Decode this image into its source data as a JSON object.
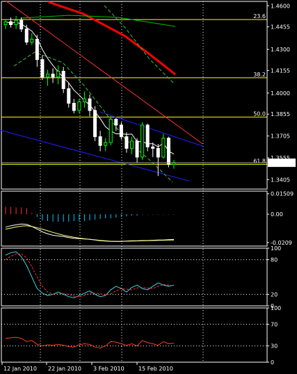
{
  "chart_data": [
    {
      "panel": "price",
      "type": "candlestick",
      "y_ticks": [
        "1.4600",
        "1.4455",
        "1.4300",
        "1.4155",
        "1.4000",
        "1.3855",
        "1.3705",
        "1.3555",
        "1.3405"
      ],
      "ylim": [
        1.334,
        1.463
      ],
      "current_price": "1.3521",
      "x_ticks": [
        "12 Jan 2010",
        "22 Jan 2010",
        "3 Feb 2010",
        "15 Feb 2010"
      ],
      "fib_levels": [
        {
          "label": "23.6",
          "price": 1.4505
        },
        {
          "label": "38.2",
          "price": 1.4105
        },
        {
          "label": "50.0",
          "price": 1.3835
        },
        {
          "label": "61.8",
          "price": 1.351
        }
      ],
      "candles": [
        {
          "o": 1.447,
          "h": 1.451,
          "l": 1.444,
          "c": 1.449
        },
        {
          "o": 1.449,
          "h": 1.452,
          "l": 1.445,
          "c": 1.447
        },
        {
          "o": 1.447,
          "h": 1.453,
          "l": 1.444,
          "c": 1.45
        },
        {
          "o": 1.45,
          "h": 1.452,
          "l": 1.442,
          "c": 1.444
        },
        {
          "o": 1.444,
          "h": 1.447,
          "l": 1.433,
          "c": 1.435
        },
        {
          "o": 1.435,
          "h": 1.441,
          "l": 1.433,
          "c": 1.437
        },
        {
          "o": 1.437,
          "h": 1.44,
          "l": 1.418,
          "c": 1.423
        },
        {
          "o": 1.423,
          "h": 1.426,
          "l": 1.409,
          "c": 1.411
        },
        {
          "o": 1.411,
          "h": 1.416,
          "l": 1.405,
          "c": 1.413
        },
        {
          "o": 1.413,
          "h": 1.417,
          "l": 1.407,
          "c": 1.411
        },
        {
          "o": 1.411,
          "h": 1.419,
          "l": 1.406,
          "c": 1.415
        },
        {
          "o": 1.415,
          "h": 1.418,
          "l": 1.4,
          "c": 1.403
        },
        {
          "o": 1.403,
          "h": 1.407,
          "l": 1.39,
          "c": 1.393
        },
        {
          "o": 1.393,
          "h": 1.396,
          "l": 1.386,
          "c": 1.388
        },
        {
          "o": 1.388,
          "h": 1.396,
          "l": 1.386,
          "c": 1.394
        },
        {
          "o": 1.394,
          "h": 1.401,
          "l": 1.39,
          "c": 1.396
        },
        {
          "o": 1.396,
          "h": 1.399,
          "l": 1.384,
          "c": 1.388
        },
        {
          "o": 1.388,
          "h": 1.391,
          "l": 1.367,
          "c": 1.37
        },
        {
          "o": 1.37,
          "h": 1.374,
          "l": 1.36,
          "c": 1.364
        },
        {
          "o": 1.364,
          "h": 1.369,
          "l": 1.36,
          "c": 1.366
        },
        {
          "o": 1.366,
          "h": 1.384,
          "l": 1.364,
          "c": 1.382
        },
        {
          "o": 1.382,
          "h": 1.383,
          "l": 1.374,
          "c": 1.378
        },
        {
          "o": 1.378,
          "h": 1.38,
          "l": 1.368,
          "c": 1.37
        },
        {
          "o": 1.37,
          "h": 1.373,
          "l": 1.359,
          "c": 1.362
        },
        {
          "o": 1.362,
          "h": 1.37,
          "l": 1.358,
          "c": 1.367
        },
        {
          "o": 1.367,
          "h": 1.369,
          "l": 1.352,
          "c": 1.356
        },
        {
          "o": 1.356,
          "h": 1.38,
          "l": 1.354,
          "c": 1.378
        },
        {
          "o": 1.378,
          "h": 1.379,
          "l": 1.36,
          "c": 1.363
        },
        {
          "o": 1.363,
          "h": 1.366,
          "l": 1.356,
          "c": 1.362
        },
        {
          "o": 1.362,
          "h": 1.365,
          "l": 1.343,
          "c": 1.356
        },
        {
          "o": 1.356,
          "h": 1.372,
          "l": 1.355,
          "c": 1.369
        },
        {
          "o": 1.369,
          "h": 1.37,
          "l": 1.349,
          "c": 1.351
        },
        {
          "o": 1.351,
          "h": 1.354,
          "l": 1.348,
          "c": 1.3521
        }
      ],
      "colors": {
        "bull": "#00ff00",
        "bear": "#ffffff",
        "fib": "#ffff00",
        "sma_fast": "#ff0000",
        "sma_slow": "#00c000",
        "channel": "#ff3030",
        "channel2": "#2020ff",
        "bb": "#40c040",
        "ma_white": "#ffffff"
      }
    },
    {
      "panel": "macd",
      "type": "histogram",
      "y_ticks": [
        "0.01509",
        "0.00",
        "-0.0209"
      ],
      "ylim": [
        -0.0235,
        0.017
      ],
      "histogram": [
        0.0055,
        0.0055,
        0.005,
        0.005,
        0.0045,
        0.001,
        -0.002,
        -0.0045,
        -0.005,
        -0.0055,
        -0.0055,
        -0.0055,
        -0.0055,
        -0.005,
        -0.005,
        -0.005,
        -0.0045,
        -0.004,
        -0.0035,
        -0.003,
        -0.003,
        -0.0025,
        -0.002,
        -0.0015,
        -0.001,
        -0.001,
        -0.0005,
        -0.0005,
        -0.0005,
        -0.0005,
        -0.0005,
        -0.0005,
        -0.0005
      ],
      "main": [
        -0.0095,
        -0.0085,
        -0.0078,
        -0.0072,
        -0.0075,
        -0.009,
        -0.011,
        -0.013,
        -0.0145,
        -0.0155,
        -0.016,
        -0.0165,
        -0.0172,
        -0.0178,
        -0.018,
        -0.0182,
        -0.0185,
        -0.019,
        -0.0195,
        -0.0198,
        -0.02,
        -0.02,
        -0.02,
        -0.0198,
        -0.0196,
        -0.0196,
        -0.0194,
        -0.0194,
        -0.0192,
        -0.019,
        -0.019,
        -0.0188,
        -0.0186
      ],
      "signal": [
        -0.011,
        -0.0102,
        -0.0094,
        -0.0088,
        -0.0085,
        -0.009,
        -0.01,
        -0.011,
        -0.0122,
        -0.0134,
        -0.0145,
        -0.0155,
        -0.0163,
        -0.017,
        -0.0176,
        -0.0181,
        -0.0185,
        -0.0189,
        -0.0193,
        -0.0196,
        -0.0199,
        -0.02,
        -0.02,
        -0.0199,
        -0.0198,
        -0.0197,
        -0.0196,
        -0.0195,
        -0.0194,
        -0.0193,
        -0.0192,
        -0.0191,
        -0.019
      ]
    },
    {
      "panel": "stochastic",
      "type": "line",
      "y_ticks": [
        "100",
        "80",
        "20",
        "0"
      ],
      "ylim": [
        0,
        100
      ],
      "levels": [
        80,
        20
      ],
      "main": [
        88,
        92,
        94,
        85,
        70,
        50,
        30,
        22,
        18,
        20,
        24,
        20,
        16,
        14,
        18,
        22,
        26,
        20,
        16,
        18,
        28,
        34,
        30,
        24,
        32,
        36,
        30,
        28,
        34,
        40,
        36,
        34,
        36
      ],
      "signal": [
        80,
        86,
        90,
        90,
        83,
        68,
        50,
        34,
        24,
        20,
        21,
        21,
        20,
        17,
        16,
        18,
        22,
        22,
        21,
        19,
        21,
        26,
        30,
        29,
        28,
        31,
        32,
        31,
        30,
        34,
        37,
        36,
        35
      ]
    },
    {
      "panel": "rsi",
      "type": "line",
      "y_ticks": [
        "100",
        "70",
        "30",
        "0"
      ],
      "ylim": [
        0,
        100
      ],
      "levels": [
        70,
        30
      ],
      "main": [
        44,
        45,
        46,
        44,
        38,
        40,
        33,
        30,
        32,
        31,
        33,
        31,
        29,
        28,
        32,
        34,
        33,
        28,
        26,
        30,
        38,
        37,
        34,
        31,
        34,
        30,
        40,
        36,
        34,
        31,
        38,
        34,
        35
      ]
    }
  ]
}
